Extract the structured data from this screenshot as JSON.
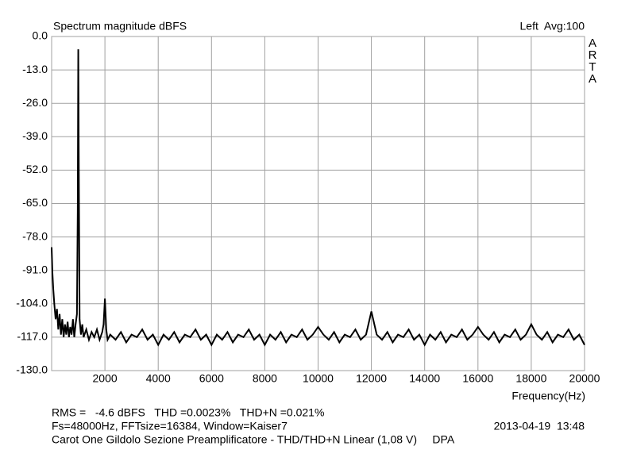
{
  "chart_data": {
    "type": "line",
    "title": "Spectrum magnitude dBFS",
    "channel_label": "Left  Avg:100",
    "brand": "ARTA",
    "x_label": "Frequency(Hz)",
    "notes": [
      {
        "text": "RMS =   -4.6 dBFS   THD =0.0023%   THD+N =0.021%",
        "color": "#c00000"
      },
      {
        "text": "Fs=48000Hz, FFTsize=16384, Window=Kaiser7",
        "color": "#000000"
      },
      {
        "text": "Carot One Gildolo Sezione Preamplificatore - THD/THD+N Linear (1,08 V)     DPA",
        "color": "#000000"
      }
    ],
    "timestamp": "2013-04-19  13:48",
    "xlim": [
      0,
      20000
    ],
    "xticks": [
      2000,
      4000,
      6000,
      8000,
      10000,
      12000,
      14000,
      16000,
      18000,
      20000
    ],
    "ylim": [
      -130,
      0
    ],
    "yticks": [
      {
        "value": 0,
        "label": "0.0"
      },
      {
        "value": -13,
        "label": "-13.0"
      },
      {
        "value": -26,
        "label": "-26.0"
      },
      {
        "value": -39,
        "label": "-39.0"
      },
      {
        "value": -52,
        "label": "-52.0"
      },
      {
        "value": -65,
        "label": "-65.0"
      },
      {
        "value": -78,
        "label": "-78.0"
      },
      {
        "value": -91,
        "label": "-91.0"
      },
      {
        "value": -104,
        "label": "-104.0"
      },
      {
        "value": -117,
        "label": "-117.0"
      },
      {
        "value": -130,
        "label": "-130.0"
      }
    ],
    "grid": true,
    "x": [
      0,
      30,
      60,
      100,
      150,
      200,
      250,
      300,
      350,
      400,
      450,
      500,
      550,
      600,
      650,
      700,
      750,
      800,
      850,
      900,
      950,
      980,
      1000,
      1020,
      1050,
      1100,
      1150,
      1200,
      1300,
      1400,
      1500,
      1600,
      1700,
      1800,
      1900,
      1950,
      2000,
      2050,
      2100,
      2200,
      2400,
      2600,
      2800,
      3000,
      3200,
      3400,
      3600,
      3800,
      4000,
      4200,
      4400,
      4600,
      4800,
      5000,
      5200,
      5400,
      5600,
      5800,
      6000,
      6200,
      6400,
      6600,
      6800,
      7000,
      7200,
      7400,
      7600,
      7800,
      8000,
      8200,
      8400,
      8600,
      8800,
      9000,
      9200,
      9400,
      9600,
      9800,
      10000,
      10200,
      10400,
      10600,
      10800,
      11000,
      11200,
      11400,
      11600,
      11800,
      12000,
      12200,
      12400,
      12600,
      12800,
      13000,
      13200,
      13400,
      13600,
      13800,
      14000,
      14200,
      14400,
      14600,
      14800,
      15000,
      15200,
      15400,
      15600,
      15800,
      16000,
      16200,
      16400,
      16600,
      16800,
      17000,
      17200,
      17400,
      17600,
      17800,
      18000,
      18200,
      18400,
      18600,
      18800,
      19000,
      19200,
      19400,
      19600,
      19800,
      20000
    ],
    "series": [
      {
        "name": "Left",
        "color": "#000000",
        "values": [
          -82,
          -92,
          -98,
          -104,
          -110,
          -106,
          -114,
          -108,
          -116,
          -110,
          -117,
          -112,
          -116,
          -111,
          -117,
          -113,
          -116,
          -110,
          -117,
          -112,
          -108,
          -68,
          -5,
          -52,
          -110,
          -116,
          -112,
          -117,
          -114,
          -118,
          -115,
          -117,
          -114,
          -118,
          -115,
          -112,
          -102,
          -114,
          -118,
          -116,
          -118,
          -115,
          -119,
          -116,
          -117,
          -114,
          -118,
          -116,
          -120,
          -116,
          -118,
          -115,
          -119,
          -116,
          -117,
          -114,
          -118,
          -116,
          -120,
          -116,
          -118,
          -115,
          -119,
          -116,
          -117,
          -114,
          -118,
          -116,
          -120,
          -116,
          -118,
          -115,
          -119,
          -116,
          -117,
          -114,
          -118,
          -116,
          -113,
          -116,
          -118,
          -115,
          -119,
          -116,
          -117,
          -114,
          -118,
          -116,
          -107,
          -116,
          -118,
          -115,
          -119,
          -116,
          -117,
          -114,
          -118,
          -116,
          -120,
          -116,
          -118,
          -115,
          -119,
          -116,
          -117,
          -114,
          -118,
          -116,
          -113,
          -116,
          -118,
          -115,
          -119,
          -116,
          -117,
          -114,
          -118,
          -116,
          -112,
          -116,
          -118,
          -115,
          -119,
          -116,
          -117,
          -114,
          -118,
          -116,
          -120
        ]
      }
    ]
  }
}
